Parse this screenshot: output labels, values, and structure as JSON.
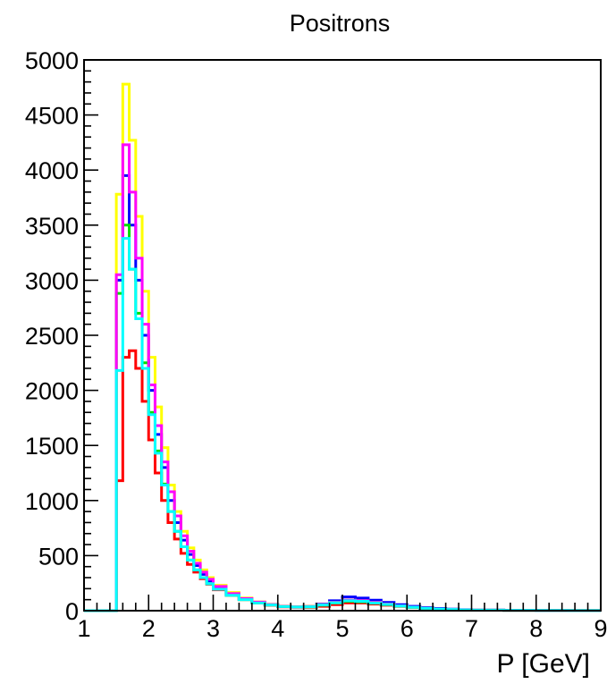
{
  "chart_data": {
    "type": "line",
    "subtype": "step-histogram",
    "title": "Positrons",
    "xlabel": "P [GeV]",
    "ylabel": "",
    "xlim": [
      1,
      9
    ],
    "ylim": [
      0,
      5000
    ],
    "x_tick_labels": [
      "1",
      "2",
      "3",
      "4",
      "5",
      "6",
      "7",
      "8",
      "9"
    ],
    "y_tick_labels": [
      "0",
      "500",
      "1000",
      "1500",
      "2000",
      "2500",
      "3000",
      "3500",
      "4000",
      "4500",
      "5000"
    ],
    "grid": false,
    "legend": "none",
    "bin_edges": [
      1.0,
      1.5,
      1.6,
      1.7,
      1.8,
      1.9,
      2.0,
      2.1,
      2.2,
      2.3,
      2.4,
      2.5,
      2.6,
      2.7,
      2.8,
      2.9,
      3.0,
      3.2,
      3.4,
      3.6,
      3.8,
      4.0,
      4.2,
      4.4,
      4.6,
      4.8,
      5.0,
      5.2,
      5.4,
      5.6,
      5.8,
      6.0,
      6.2,
      6.4,
      6.6,
      6.8,
      7.0,
      7.5,
      8.0,
      8.5,
      9.0
    ],
    "series": [
      {
        "color": "#ff0000",
        "values": [
          0,
          1180,
          2300,
          2360,
          2200,
          1900,
          1550,
          1250,
          1000,
          800,
          650,
          520,
          420,
          350,
          290,
          240,
          190,
          140,
          100,
          70,
          50,
          35,
          30,
          30,
          40,
          55,
          70,
          70,
          60,
          50,
          40,
          30,
          22,
          16,
          12,
          8,
          5,
          3,
          2,
          1
        ]
      },
      {
        "color": "#0000ff",
        "values": [
          0,
          3000,
          3950,
          3500,
          3000,
          2500,
          2000,
          1600,
          1300,
          1000,
          800,
          640,
          510,
          410,
          330,
          270,
          210,
          150,
          105,
          75,
          55,
          40,
          35,
          40,
          60,
          90,
          125,
          115,
          95,
          75,
          55,
          40,
          28,
          20,
          14,
          9,
          6,
          4,
          2,
          1
        ]
      },
      {
        "color": "#ffff00",
        "values": [
          0,
          3780,
          4780,
          4270,
          3580,
          2900,
          2300,
          1850,
          1480,
          1140,
          900,
          720,
          570,
          460,
          370,
          300,
          230,
          165,
          115,
          80,
          58,
          42,
          36,
          40,
          55,
          75,
          95,
          90,
          75,
          60,
          45,
          32,
          23,
          16,
          11,
          7,
          5,
          3,
          2,
          1
        ]
      },
      {
        "color": "#00dd00",
        "values": [
          0,
          2880,
          3500,
          3100,
          2700,
          2250,
          1800,
          1450,
          1150,
          900,
          720,
          580,
          460,
          370,
          300,
          245,
          195,
          140,
          100,
          70,
          52,
          38,
          32,
          34,
          50,
          70,
          85,
          80,
          68,
          55,
          42,
          30,
          21,
          15,
          10,
          7,
          4,
          3,
          2,
          1
        ]
      },
      {
        "color": "#ff00ff",
        "values": [
          0,
          3050,
          4230,
          3800,
          3200,
          2600,
          2050,
          1680,
          1350,
          1080,
          860,
          680,
          540,
          430,
          350,
          285,
          220,
          155,
          110,
          78,
          56,
          40,
          34,
          38,
          55,
          75,
          95,
          90,
          75,
          60,
          45,
          32,
          23,
          16,
          11,
          7,
          5,
          3,
          2,
          1
        ]
      },
      {
        "color": "#00ffff",
        "values": [
          0,
          2180,
          3380,
          3100,
          2650,
          2200,
          1780,
          1430,
          1140,
          900,
          720,
          580,
          460,
          370,
          300,
          245,
          195,
          140,
          100,
          70,
          52,
          38,
          33,
          36,
          52,
          72,
          90,
          85,
          70,
          57,
          43,
          31,
          22,
          15,
          11,
          7,
          5,
          3,
          2,
          1
        ]
      }
    ]
  }
}
